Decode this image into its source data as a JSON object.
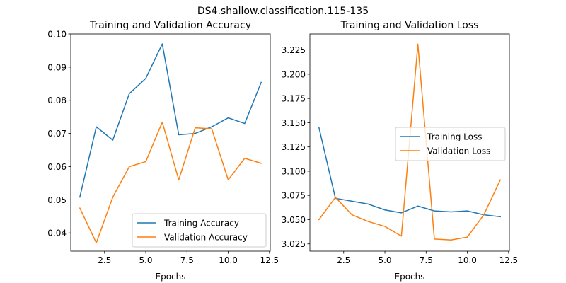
{
  "figure": {
    "suptitle": "DS4.shallow.classification.115-135"
  },
  "colors": {
    "training": "#1f77b4",
    "validation": "#ff7f0e"
  },
  "chart_data": [
    {
      "type": "line",
      "title": "Training and Validation Accuracy",
      "xlabel": "Epochs",
      "ylabel": "",
      "xlim": [
        0.45,
        12.55
      ],
      "ylim": [
        0.0345,
        0.1
      ],
      "xticks": [
        2.5,
        5.0,
        7.5,
        10.0,
        12.5
      ],
      "xtick_labels": [
        "2.5",
        "5.0",
        "7.5",
        "10.0",
        "12.5"
      ],
      "yticks": [
        0.04,
        0.05,
        0.06,
        0.07,
        0.08,
        0.09,
        0.1
      ],
      "ytick_labels": [
        "0.04",
        "0.05",
        "0.06",
        "0.07",
        "0.08",
        "0.09",
        "0.10"
      ],
      "grid": false,
      "legend": "lower-right",
      "x": [
        1,
        2,
        3,
        4,
        5,
        6,
        7,
        8,
        9,
        10,
        11,
        12
      ],
      "series": [
        {
          "name": "Training Accuracy",
          "color": "#1f77b4",
          "values": [
            0.0508,
            0.072,
            0.068,
            0.082,
            0.0866,
            0.097,
            0.0696,
            0.07,
            0.072,
            0.0747,
            0.073,
            0.0854
          ]
        },
        {
          "name": "Validation Accuracy",
          "color": "#ff7f0e",
          "values": [
            0.0475,
            0.037,
            0.0508,
            0.06,
            0.0615,
            0.0734,
            0.056,
            0.0717,
            0.0714,
            0.056,
            0.0625,
            0.061
          ]
        }
      ]
    },
    {
      "type": "line",
      "title": "Training and Validation Loss",
      "xlabel": "Epochs",
      "ylabel": "",
      "xlim": [
        0.45,
        12.55
      ],
      "ylim": [
        3.0175,
        3.2415
      ],
      "xticks": [
        2.5,
        5.0,
        7.5,
        10.0,
        12.5
      ],
      "xtick_labels": [
        "2.5",
        "5.0",
        "7.5",
        "10.0",
        "12.5"
      ],
      "yticks": [
        3.025,
        3.05,
        3.075,
        3.1,
        3.125,
        3.15,
        3.175,
        3.2,
        3.225
      ],
      "ytick_labels": [
        "3.025",
        "3.050",
        "3.075",
        "3.100",
        "3.125",
        "3.150",
        "3.175",
        "3.200",
        "3.225"
      ],
      "grid": false,
      "legend": "center-right",
      "x": [
        1,
        2,
        3,
        4,
        5,
        6,
        7,
        8,
        9,
        10,
        11,
        12
      ],
      "series": [
        {
          "name": "Training Loss",
          "color": "#1f77b4",
          "values": [
            3.145,
            3.072,
            3.069,
            3.066,
            3.06,
            3.057,
            3.064,
            3.059,
            3.058,
            3.059,
            3.055,
            3.053
          ]
        },
        {
          "name": "Validation Loss",
          "color": "#ff7f0e",
          "values": [
            3.05,
            3.073,
            3.055,
            3.048,
            3.043,
            3.033,
            3.231,
            3.03,
            3.029,
            3.032,
            3.055,
            3.091
          ]
        }
      ]
    }
  ]
}
